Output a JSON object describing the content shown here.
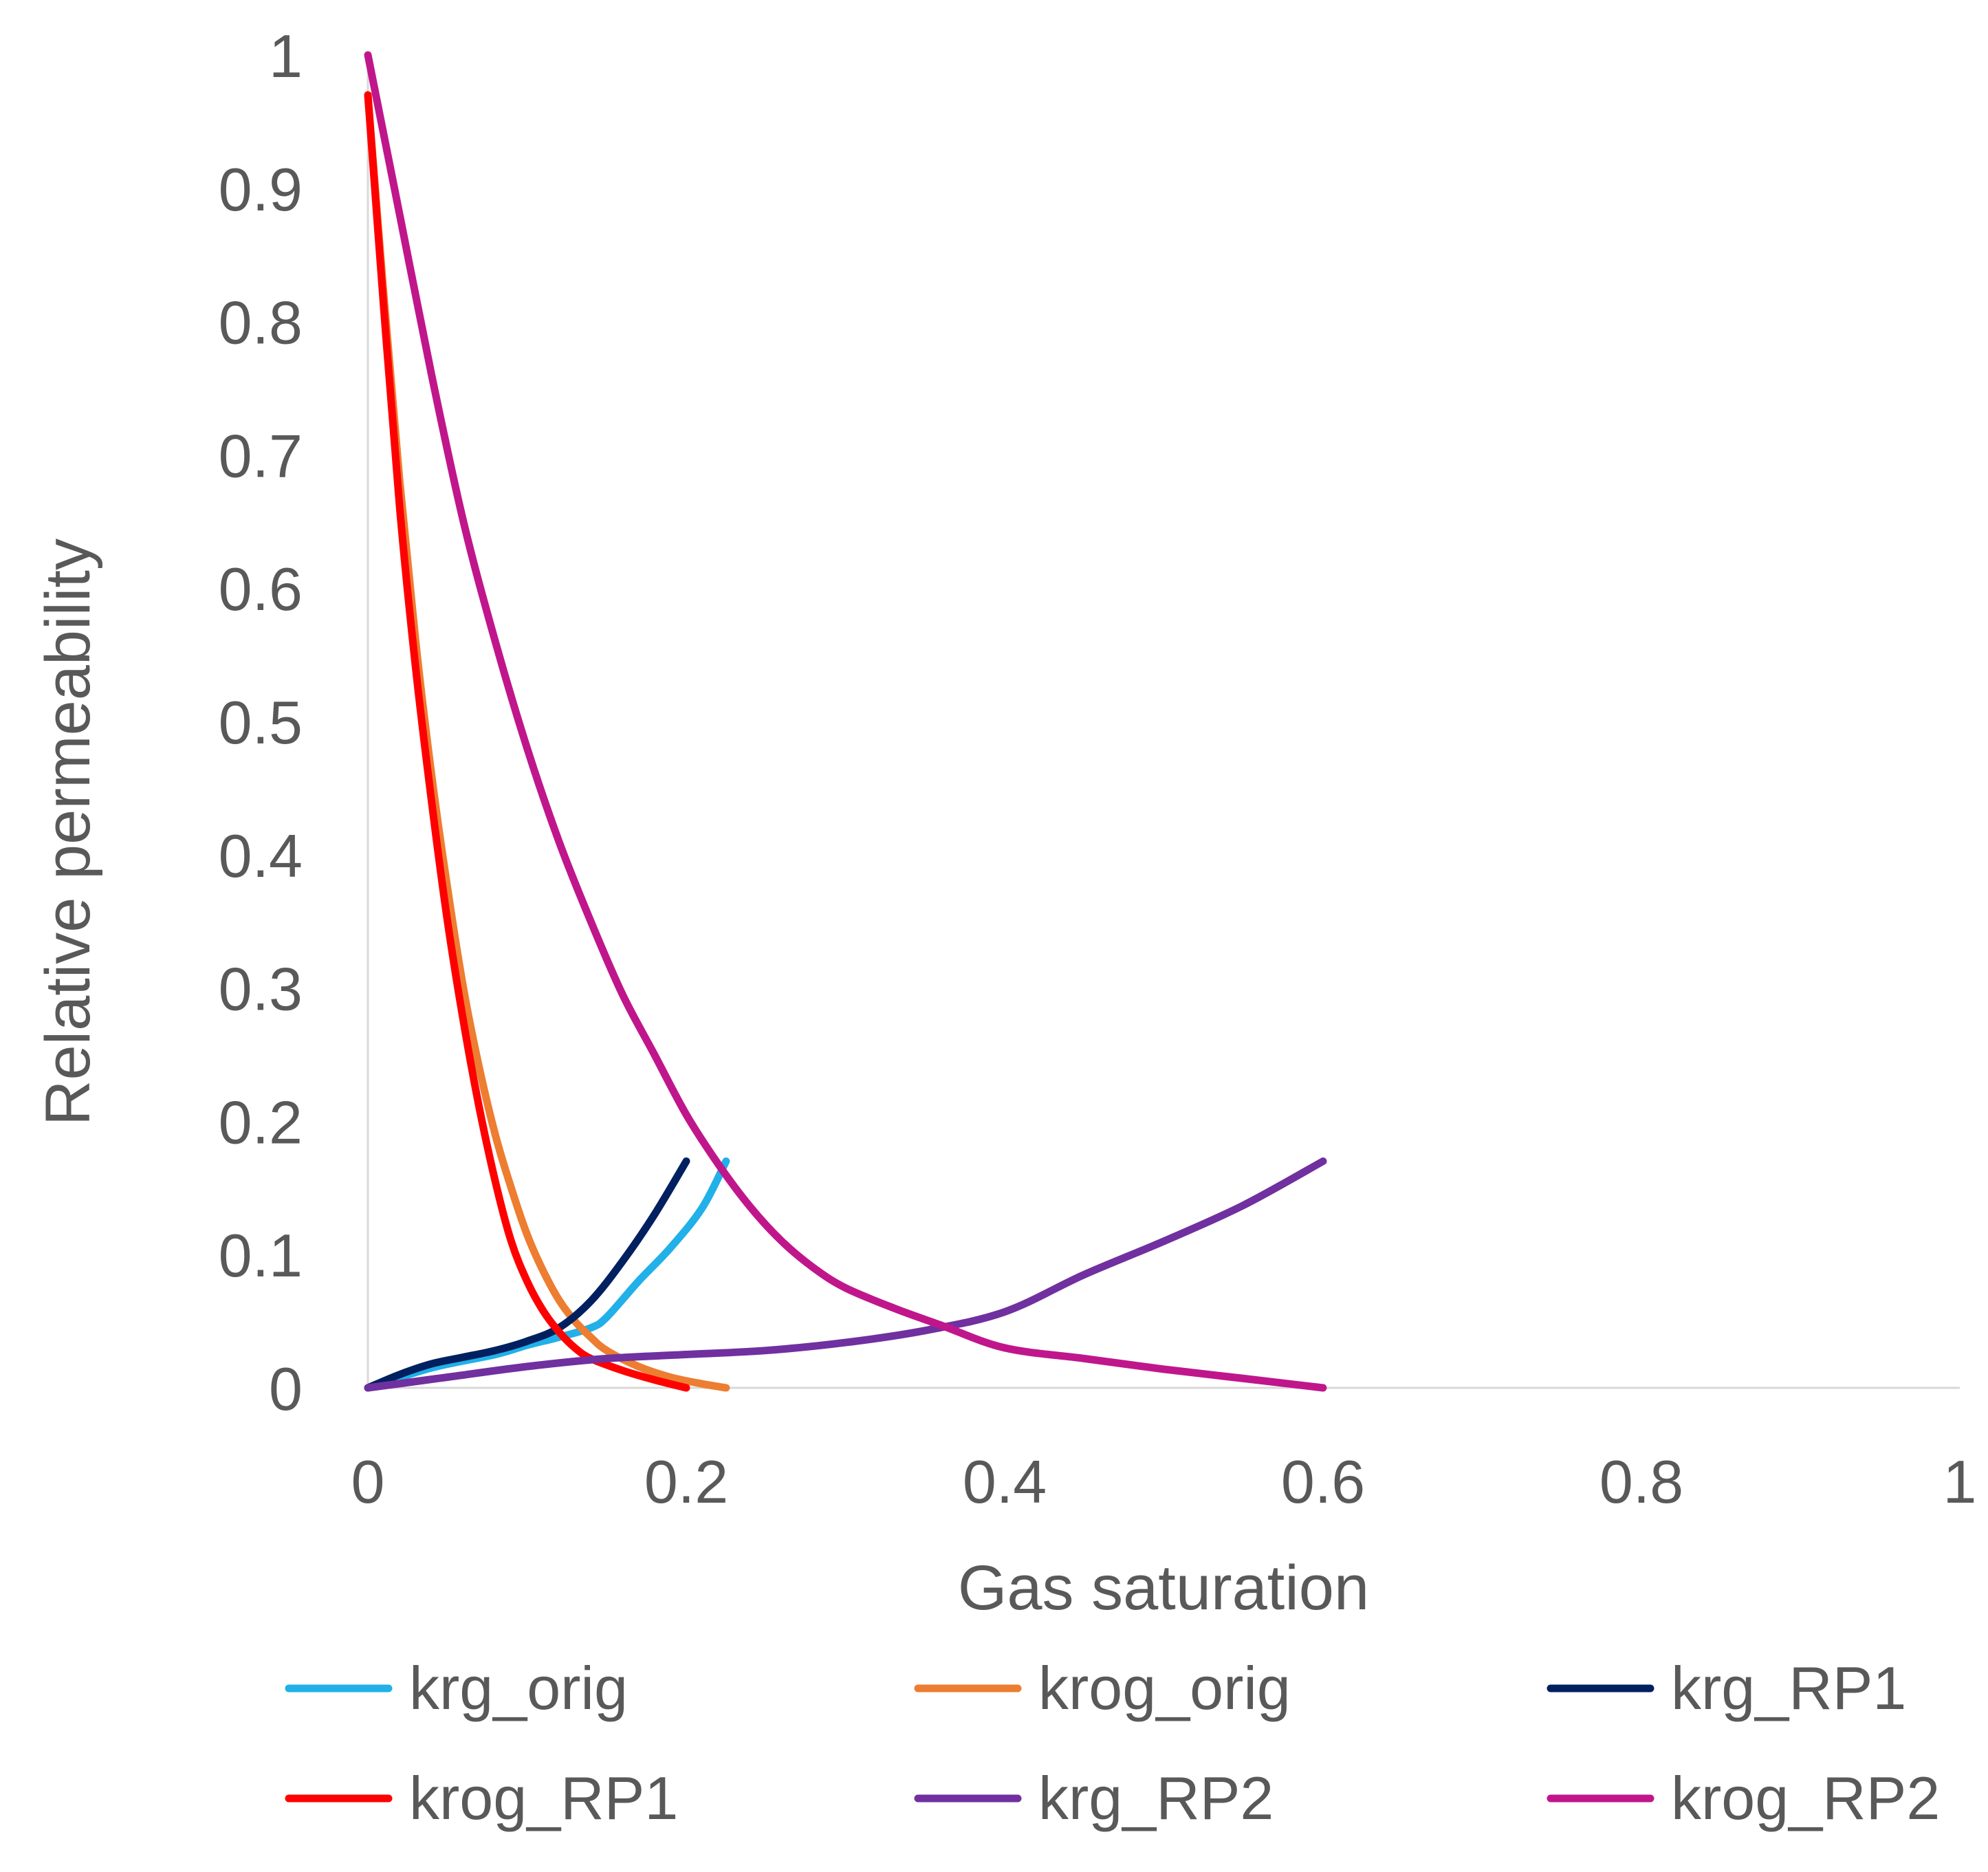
{
  "chart_data": {
    "type": "line",
    "title": "",
    "xlabel": "Gas saturation",
    "ylabel": "Relative permeability",
    "xlim": [
      0,
      1
    ],
    "ylim": [
      0,
      1
    ],
    "xticks": [
      0,
      0.2,
      0.4,
      0.6,
      0.8,
      1
    ],
    "xtick_labels": [
      "0",
      "0.2",
      "0.4",
      "0.6",
      "0.8",
      "1"
    ],
    "yticks": [
      0,
      0.1,
      0.2,
      0.3,
      0.4,
      0.5,
      0.6,
      0.7,
      0.8,
      0.9,
      1
    ],
    "ytick_labels": [
      "0",
      "0.1",
      "0.2",
      "0.3",
      "0.4",
      "0.5",
      "0.6",
      "0.7",
      "0.8",
      "0.9",
      "1"
    ],
    "grid": false,
    "legend_position": "bottom",
    "series": [
      {
        "name": "krg_orig",
        "color": "#21B0E8",
        "x": [
          0,
          0.04,
          0.08,
          0.1,
          0.12,
          0.14,
          0.15,
          0.17,
          0.19,
          0.21,
          0.225
        ],
        "y": [
          0,
          0.015,
          0.025,
          0.032,
          0.038,
          0.045,
          0.053,
          0.08,
          0.105,
          0.135,
          0.17
        ]
      },
      {
        "name": "krog_orig",
        "color": "#ED7D31",
        "x": [
          0,
          0.01,
          0.02,
          0.03,
          0.04,
          0.05,
          0.06,
          0.07,
          0.08,
          0.09,
          0.1,
          0.11,
          0.12,
          0.13,
          0.14,
          0.15,
          0.17,
          0.19,
          0.21,
          0.225
        ],
        "y": [
          0.97,
          0.82,
          0.68,
          0.56,
          0.46,
          0.375,
          0.3,
          0.24,
          0.19,
          0.15,
          0.115,
          0.088,
          0.066,
          0.05,
          0.038,
          0.028,
          0.016,
          0.008,
          0.003,
          0
        ]
      },
      {
        "name": "krg_RP1",
        "color": "#002060",
        "x": [
          0,
          0.02,
          0.04,
          0.06,
          0.08,
          0.1,
          0.12,
          0.14,
          0.16,
          0.18,
          0.2
        ],
        "y": [
          0,
          0.01,
          0.018,
          0.023,
          0.028,
          0.035,
          0.045,
          0.065,
          0.095,
          0.13,
          0.17
        ]
      },
      {
        "name": "krog_RP1",
        "color": "#FF0000",
        "x": [
          0,
          0.01,
          0.02,
          0.03,
          0.04,
          0.05,
          0.06,
          0.07,
          0.08,
          0.09,
          0.1,
          0.11,
          0.12,
          0.13,
          0.14,
          0.16,
          0.18,
          0.2
        ],
        "y": [
          0.97,
          0.81,
          0.66,
          0.54,
          0.44,
          0.35,
          0.275,
          0.21,
          0.155,
          0.11,
          0.08,
          0.058,
          0.042,
          0.03,
          0.022,
          0.013,
          0.006,
          0
        ]
      },
      {
        "name": "krg_RP2",
        "color": "#7030A0",
        "x": [
          0,
          0.05,
          0.1,
          0.15,
          0.2,
          0.25,
          0.3,
          0.35,
          0.4,
          0.45,
          0.5,
          0.55,
          0.6
        ],
        "y": [
          0,
          0.008,
          0.016,
          0.022,
          0.025,
          0.028,
          0.034,
          0.043,
          0.057,
          0.085,
          0.11,
          0.137,
          0.17
        ]
      },
      {
        "name": "krog_RP2",
        "color": "#C0168C",
        "x": [
          0,
          0.02,
          0.04,
          0.06,
          0.08,
          0.1,
          0.12,
          0.14,
          0.16,
          0.18,
          0.2,
          0.22,
          0.24,
          0.26,
          0.28,
          0.3,
          0.33,
          0.36,
          0.4,
          0.45,
          0.5,
          0.55,
          0.6
        ],
        "y": [
          1,
          0.88,
          0.76,
          0.65,
          0.56,
          0.48,
          0.41,
          0.35,
          0.295,
          0.25,
          0.205,
          0.168,
          0.136,
          0.11,
          0.09,
          0.075,
          0.06,
          0.047,
          0.03,
          0.022,
          0.014,
          0.007,
          0
        ]
      }
    ]
  }
}
